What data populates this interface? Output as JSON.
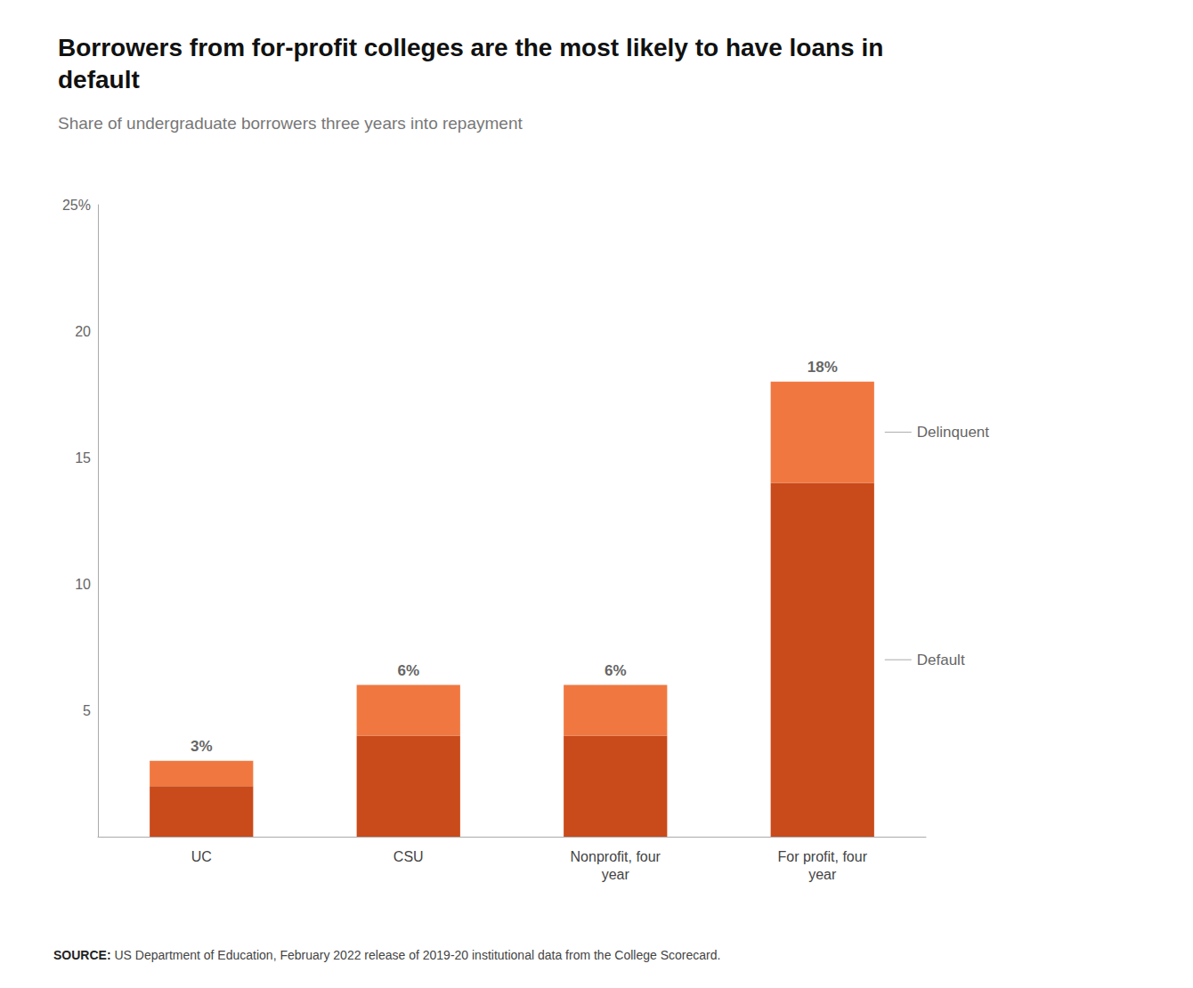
{
  "chart_data": {
    "type": "bar",
    "stacked": true,
    "title": "Borrowers from for-profit colleges are the most likely to have loans in\ndefault",
    "subtitle": "Share of undergraduate borrowers three years into repayment",
    "categories": [
      "UC",
      "CSU",
      "Nonprofit, four\nyear",
      "For profit, four\nyear"
    ],
    "series": [
      {
        "color": "#c94a1a",
        "values": [
          2,
          4,
          4,
          14
        ]
      },
      {
        "color": "#f07840",
        "values": [
          1,
          2,
          2,
          4
        ]
      }
    ],
    "totals": [
      3,
      6,
      6,
      18
    ],
    "total_labels": [
      "3%",
      "6%",
      "6%",
      "18%"
    ],
    "annotations": [
      {
        "text": "Delinquent",
        "category": "For profit, four\nyear",
        "y": 16
      },
      {
        "text": "Default",
        "category": "For profit, four\nyear",
        "y": 7
      }
    ],
    "ylim": [
      0,
      25
    ],
    "yticks": [
      5,
      10,
      15,
      20,
      {
        "value": 25,
        "label": "25%"
      }
    ],
    "grid": false,
    "source": {
      "label": "SOURCE:",
      "text": " US Department of Education, February 2022 release of 2019-20 institutional data from the College Scorecard."
    }
  }
}
